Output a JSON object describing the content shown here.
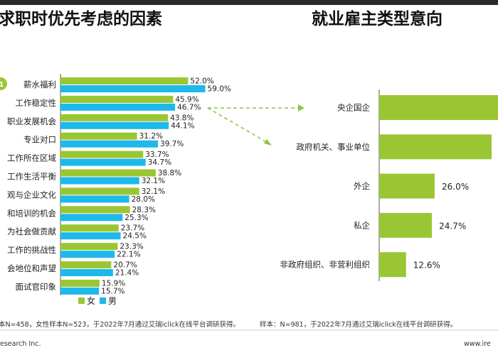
{
  "titles": {
    "left": "求职时优先考虑的因素",
    "right": "就业雇主类型意向"
  },
  "colors": {
    "female": "#9bc634",
    "male": "#1fb8ea",
    "right_bar": "#9bc634",
    "arrow": "#8cc63f",
    "axis": "#555555"
  },
  "chart_data": [
    {
      "type": "bar",
      "orientation": "horizontal",
      "title": "求职时优先考虑的因素",
      "categories": [
        "薪水福利",
        "工作稳定性",
        "职业发展机会",
        "专业对口",
        "工作所在区域",
        "工作生活平衡",
        "价值观与企业文化",
        "学习和培训的机会",
        "为社会做贡献",
        "工作的挑战性",
        "社会地位和声望",
        "面试官印象"
      ],
      "category_labels_visible": [
        "薪水福利",
        "工作稳定性",
        "职业发展机会",
        "专业对口",
        "工作所在区域",
        "工作生活平衡",
        "观与企业文化",
        "和培训的机会",
        "为社会做贡献",
        "工作的挑战性",
        "会地位和声望",
        "面试官印象"
      ],
      "series": [
        {
          "name": "女",
          "values": [
            52.0,
            45.9,
            43.8,
            31.2,
            33.7,
            38.8,
            32.1,
            28.3,
            23.7,
            23.3,
            20.7,
            15.9
          ]
        },
        {
          "name": "男",
          "values": [
            59.0,
            46.7,
            44.1,
            39.7,
            34.7,
            32.1,
            28.0,
            25.3,
            24.5,
            22.1,
            21.4,
            15.7
          ]
        }
      ],
      "value_suffix": "%",
      "legend": {
        "position": "bottom",
        "entries": [
          "女",
          "男"
        ]
      },
      "xlim": [
        0,
        100
      ],
      "grid": false
    },
    {
      "type": "bar",
      "orientation": "horizontal",
      "title": "就业雇主类型意向",
      "categories": [
        "央企国企",
        "政府机关、事业单位",
        "外企",
        "私企",
        "非政府组织、非营利组织"
      ],
      "values": [
        null,
        null,
        26.0,
        24.7,
        12.6
      ],
      "value_labels": [
        "",
        "",
        "26.0%",
        "24.7%",
        "12.6%"
      ],
      "xlim": [
        0,
        70
      ],
      "grid": false
    }
  ],
  "footnotes": {
    "left": "本N=458，女性样本N=523，于2022年7月通过艾瑞iclick在线平台调研获得。",
    "right": "样本：N=981，于2022年7月通过艾瑞iclick在线平台调研获得。",
    "brand_left": "esearch Inc.",
    "brand_right": "www.ire"
  },
  "badge_text": "1"
}
